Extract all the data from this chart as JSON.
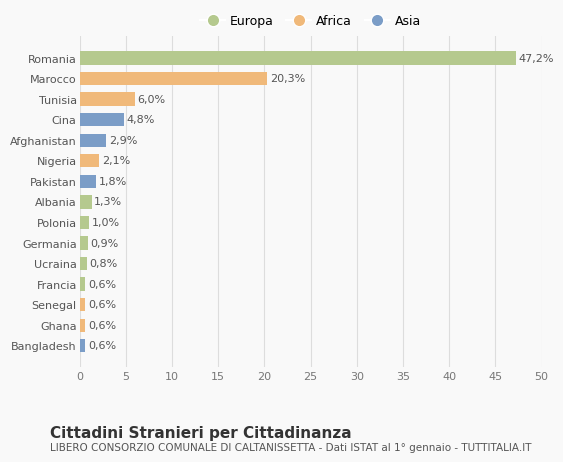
{
  "categories": [
    "Bangladesh",
    "Ghana",
    "Senegal",
    "Francia",
    "Ucraina",
    "Germania",
    "Polonia",
    "Albania",
    "Pakistan",
    "Nigeria",
    "Afghanistan",
    "Cina",
    "Tunisia",
    "Marocco",
    "Romania"
  ],
  "values": [
    0.6,
    0.6,
    0.6,
    0.6,
    0.8,
    0.9,
    1.0,
    1.3,
    1.8,
    2.1,
    2.9,
    4.8,
    6.0,
    20.3,
    47.2
  ],
  "labels": [
    "0,6%",
    "0,6%",
    "0,6%",
    "0,6%",
    "0,8%",
    "0,9%",
    "1,0%",
    "1,3%",
    "1,8%",
    "2,1%",
    "2,9%",
    "4,8%",
    "6,0%",
    "20,3%",
    "47,2%"
  ],
  "continents": [
    "Asia",
    "Africa",
    "Africa",
    "Europa",
    "Europa",
    "Europa",
    "Europa",
    "Europa",
    "Asia",
    "Africa",
    "Asia",
    "Asia",
    "Africa",
    "Africa",
    "Europa"
  ],
  "colors": {
    "Europa": "#b5c98e",
    "Africa": "#f0b97a",
    "Asia": "#7b9dc7"
  },
  "title": "Cittadini Stranieri per Cittadinanza",
  "subtitle": "LIBERO CONSORZIO COMUNALE DI CALTANISSETTA - Dati ISTAT al 1° gennaio - TUTTITALIA.IT",
  "xlim": [
    0,
    50
  ],
  "xticks": [
    0,
    5,
    10,
    15,
    20,
    25,
    30,
    35,
    40,
    45,
    50
  ],
  "background_color": "#f9f9f9",
  "grid_color": "#dddddd",
  "bar_height": 0.65,
  "label_fontsize": 8,
  "tick_fontsize": 8,
  "ytick_fontsize": 8,
  "title_fontsize": 11,
  "subtitle_fontsize": 7.5,
  "legend_fontsize": 9
}
